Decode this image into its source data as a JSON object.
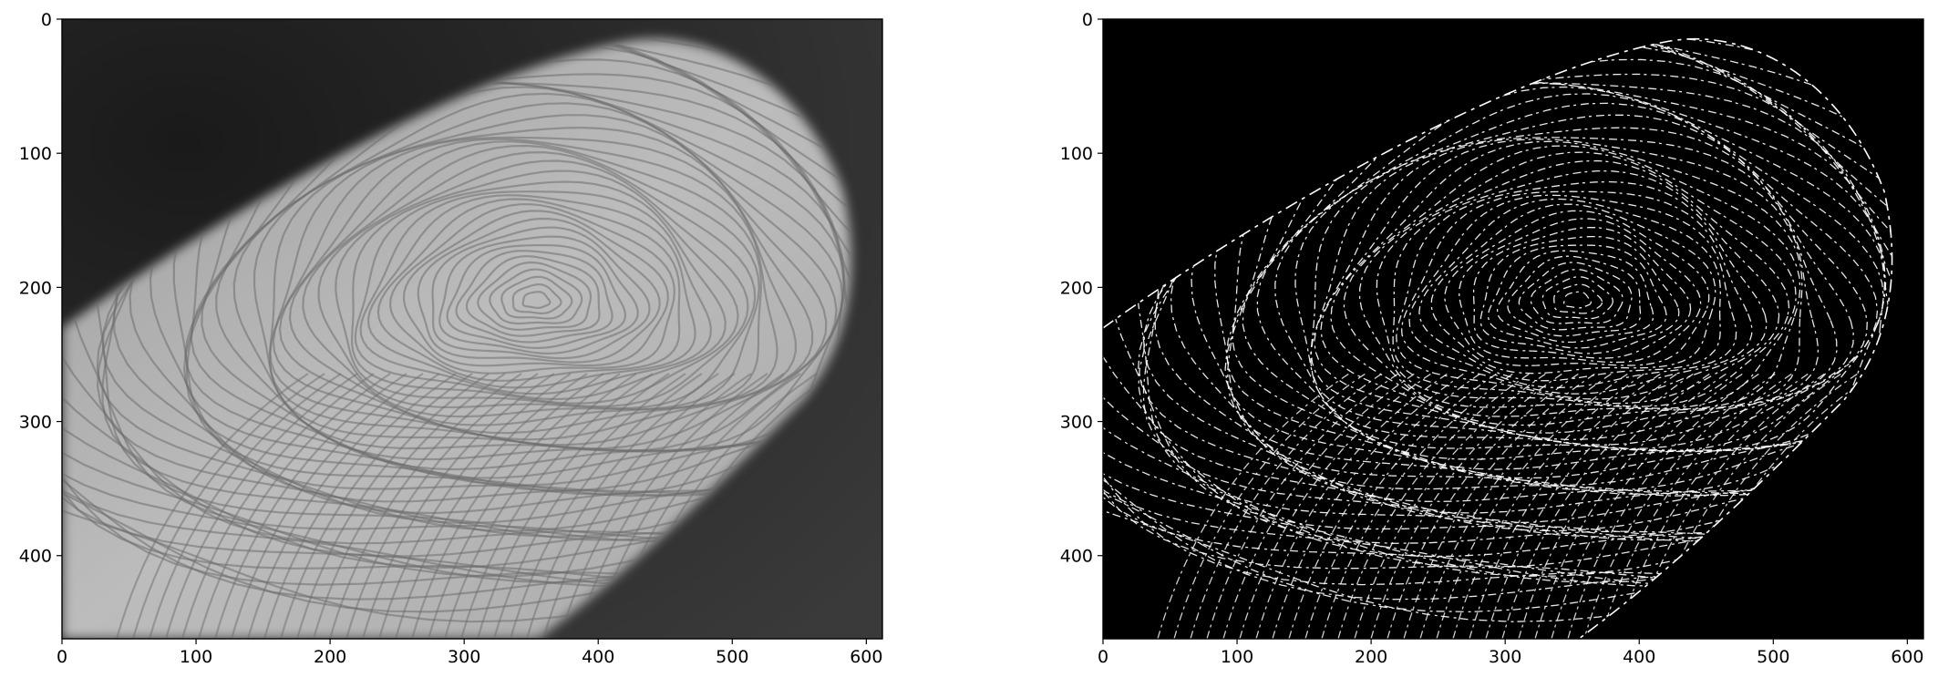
{
  "figure": {
    "panels": [
      {
        "name": "grayscale-fingerprint-photo",
        "image_extent": {
          "x": [
            0,
            612
          ],
          "y": [
            0,
            462
          ]
        },
        "x_ticks": [
          0,
          100,
          200,
          300,
          400,
          500,
          600
        ],
        "y_ticks": [
          0,
          100,
          200,
          300,
          400
        ]
      },
      {
        "name": "edge-detection-result",
        "image_extent": {
          "x": [
            0,
            612
          ],
          "y": [
            0,
            462
          ]
        },
        "x_ticks": [
          0,
          100,
          200,
          300,
          400,
          500,
          600
        ],
        "y_ticks": [
          0,
          100,
          200,
          300,
          400
        ]
      }
    ],
    "colors": {
      "background": "#ffffff",
      "axes_frame": "#000000",
      "photo_dark": "#141414",
      "photo_finger": "#b9b9b9",
      "edges_bg": "#000000",
      "edges_line": "#ffffff"
    }
  }
}
